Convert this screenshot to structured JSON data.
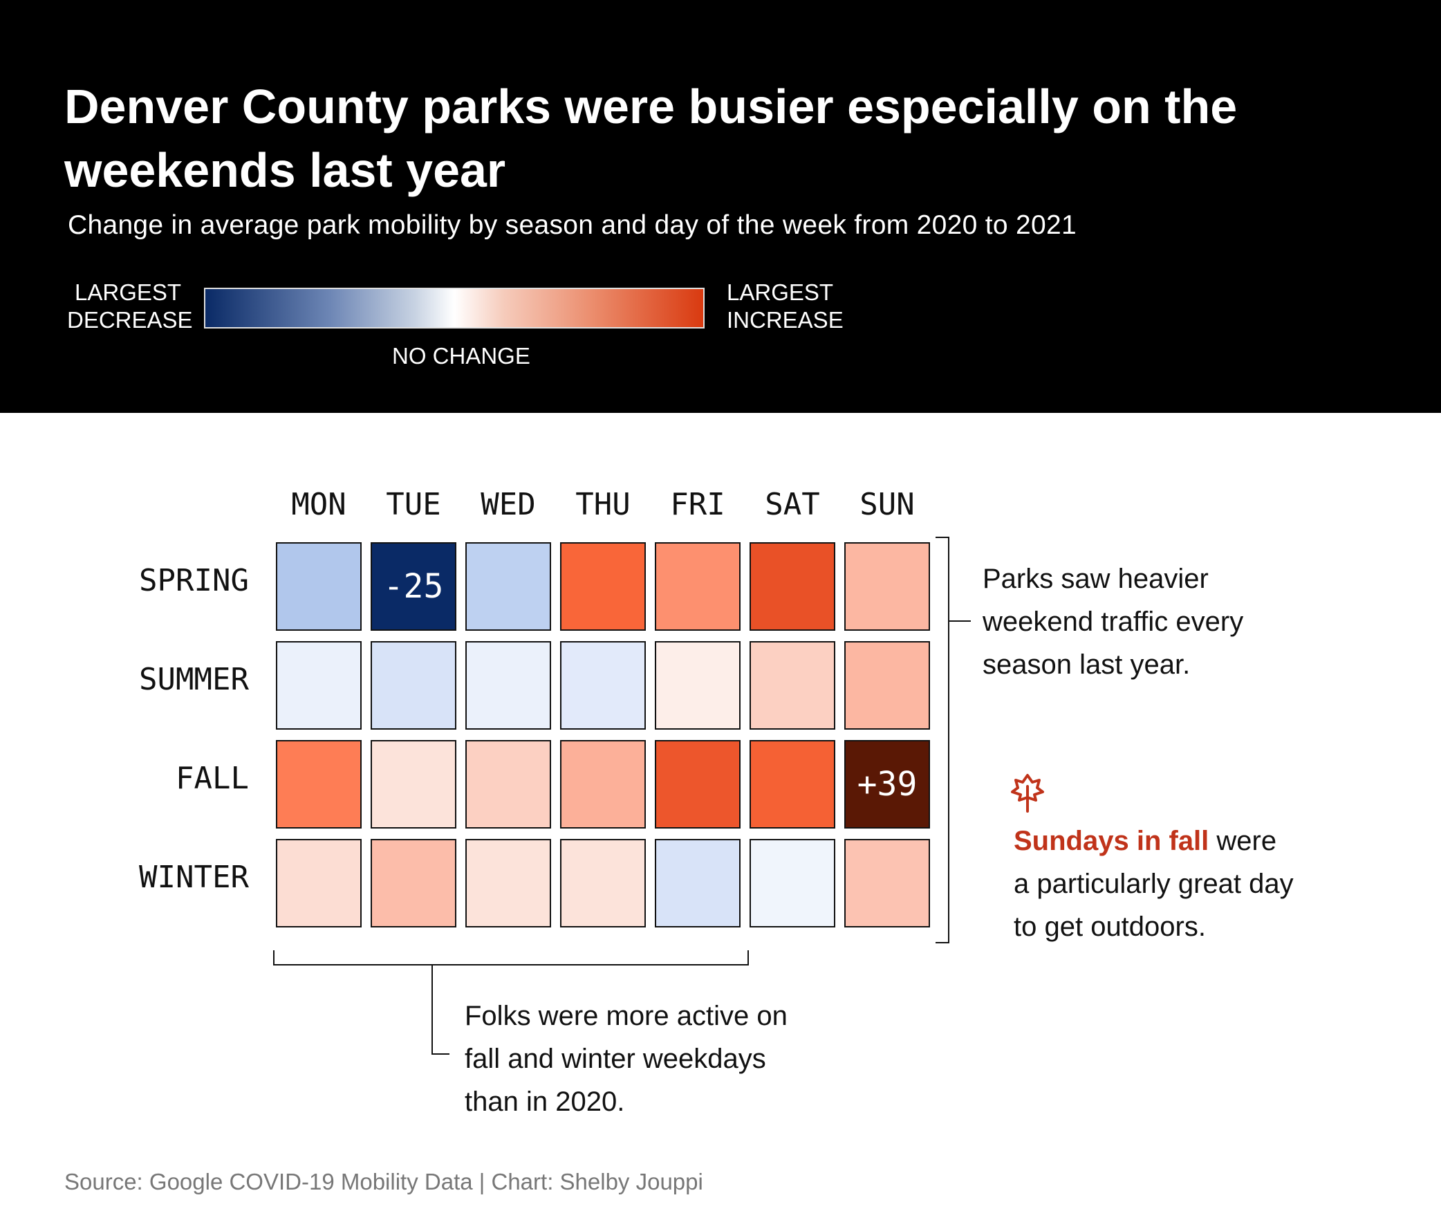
{
  "header": {
    "title": "Denver County parks were busier especially on the weekends last year",
    "subtitle": "Change in average park mobility by season and day of the week from 2020 to 2021",
    "legend": {
      "left_line1": "LARGEST",
      "left_line2": "DECREASE",
      "right_line1": "LARGEST",
      "right_line2": "INCREASE",
      "center": "NO CHANGE"
    }
  },
  "chart_data": {
    "type": "heatmap",
    "columns": [
      "MON",
      "TUE",
      "WED",
      "THU",
      "FRI",
      "SAT",
      "SUN"
    ],
    "rows": [
      "SPRING",
      "SUMMER",
      "FALL",
      "WINTER"
    ],
    "values": [
      [
        -13,
        -25,
        -12,
        25,
        18,
        29,
        12
      ],
      [
        -4,
        -8,
        -4,
        -6,
        3,
        8,
        12
      ],
      [
        21,
        5,
        8,
        13,
        28,
        26,
        39
      ],
      [
        6,
        11,
        5,
        5,
        -8,
        -3,
        10
      ]
    ],
    "labeled_cells": [
      {
        "row": 0,
        "col": 1,
        "text": "-25"
      },
      {
        "row": 2,
        "col": 6,
        "text": "+39"
      }
    ],
    "colors": {
      "largest_decrease": "#0a2a66",
      "no_change": "#ffffff",
      "largest_increase": "#d93a10",
      "max_cell": "#5a1805"
    }
  },
  "annotations": {
    "weekend": [
      "Parks saw heavier",
      "weekend traffic every",
      "season last year."
    ],
    "weekday": [
      "Folks were more active on",
      "fall and winter weekdays",
      "than in 2020."
    ],
    "sunday_highlight": "Sundays in fall",
    "sunday_rest": " were",
    "sunday_line2": "a particularly great day",
    "sunday_line3": "to get outdoors.",
    "icon": "tree-icon"
  },
  "footer": {
    "source": "Source: Google COVID-19 Mobility Data | Chart: Shelby Jouppi"
  }
}
